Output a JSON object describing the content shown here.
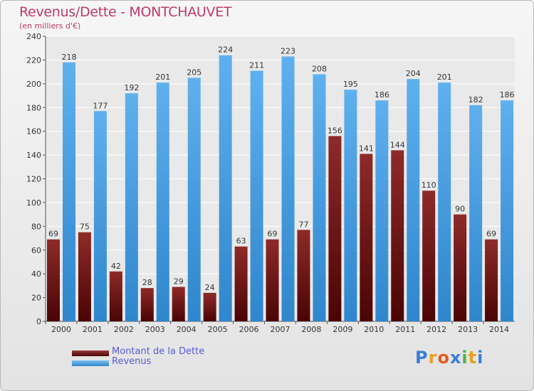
{
  "header": {
    "title": "Revenus/Dette - MONTCHAUVET",
    "subtitle": "(en milliers d'€)"
  },
  "legend": {
    "items": [
      {
        "label": "Montant de la Dette",
        "color": "#7a1e1e"
      },
      {
        "label": "Revenus",
        "color": "#4aa3e8"
      }
    ]
  },
  "logo": {
    "text": "Proxiti",
    "letters": [
      {
        "ch": "P",
        "color": "#3a7fd5"
      },
      {
        "ch": "r",
        "color": "#e8a020"
      },
      {
        "ch": "o",
        "color": "#e85a20"
      },
      {
        "ch": "x",
        "color": "#3a7fd5"
      },
      {
        "ch": "i",
        "color": "#4db34d"
      },
      {
        "ch": "t",
        "color": "#e8a020"
      },
      {
        "ch": "i",
        "color": "#3a7fd5"
      }
    ]
  },
  "chart_data": {
    "type": "bar",
    "title": "Revenus/Dette - MONTCHAUVET",
    "subtitle": "(en milliers d'€)",
    "xlabel": "",
    "ylabel": "",
    "ylim": [
      0,
      240
    ],
    "yticks": [
      0,
      20,
      40,
      60,
      80,
      100,
      120,
      140,
      160,
      180,
      200,
      220,
      240
    ],
    "grid": true,
    "legend_position": "bottom-left",
    "categories": [
      "2000",
      "2001",
      "2002",
      "2003",
      "2004",
      "2005",
      "2006",
      "2007",
      "2008",
      "2009",
      "2010",
      "2011",
      "2012",
      "2013",
      "2014"
    ],
    "series": [
      {
        "name": "Montant de la Dette",
        "color": "#7a1e1e",
        "values": [
          69,
          75,
          42,
          28,
          29,
          24,
          63,
          69,
          77,
          156,
          141,
          144,
          110,
          90,
          69
        ]
      },
      {
        "name": "Revenus",
        "color": "#4aa3e8",
        "values": [
          218,
          177,
          192,
          201,
          205,
          224,
          211,
          223,
          208,
          195,
          186,
          204,
          201,
          182,
          186
        ]
      }
    ]
  }
}
